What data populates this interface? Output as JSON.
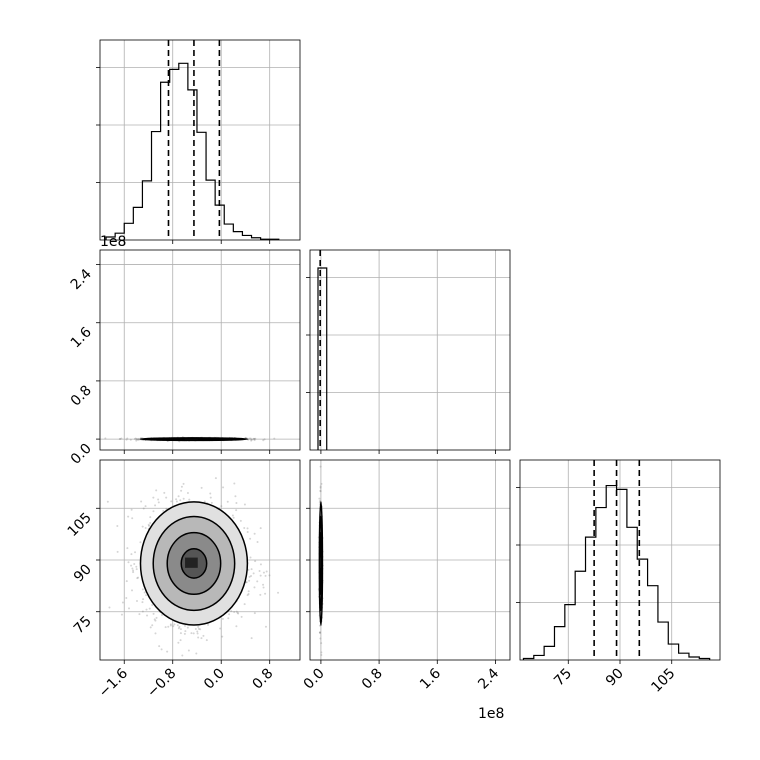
{
  "chart_data": {
    "type": "corner",
    "offset_labels": {
      "y_param2": "1e8",
      "x_param2": "1e8"
    },
    "panels": [
      {
        "id": "hist_p1",
        "type": "histogram",
        "x_range": [
          -2.0,
          1.3
        ],
        "x_ticks": [
          -1.6,
          -0.8,
          0.0,
          0.8
        ],
        "bin_edges": [
          -1.9,
          -1.75,
          -1.6,
          -1.45,
          -1.3,
          -1.15,
          -1.0,
          -0.85,
          -0.7,
          -0.55,
          -0.4,
          -0.25,
          -0.1,
          0.05,
          0.2,
          0.35,
          0.5,
          0.65,
          0.8,
          0.95
        ],
        "counts": [
          4,
          9,
          22,
          43,
          78,
          143,
          208,
          225,
          233,
          198,
          142,
          79,
          46,
          21,
          11,
          6,
          3,
          1,
          1
        ],
        "y_max": 240,
        "quantiles": [
          -0.87,
          -0.45,
          -0.03
        ]
      },
      {
        "id": "hist_p2",
        "type": "histogram",
        "x_range": [
          -0.15,
          2.6
        ],
        "x_ticks": [
          0.0,
          0.8,
          1.6,
          2.4
        ],
        "bin_edges": [
          -0.04,
          0.08
        ],
        "counts": [
          240
        ],
        "y_max": 240,
        "quantiles": [
          -0.01
        ]
      },
      {
        "id": "hist_p3",
        "type": "histogram",
        "x_range": [
          61,
          119
        ],
        "x_ticks": [
          75,
          90,
          105
        ],
        "bin_edges": [
          62,
          65,
          68,
          71,
          74,
          77,
          80,
          83,
          86,
          89,
          92,
          95,
          98,
          101,
          104,
          107,
          110,
          113,
          116
        ],
        "counts": [
          2,
          6,
          18,
          44,
          73,
          117,
          162,
          201,
          230,
          225,
          175,
          133,
          98,
          50,
          21,
          9,
          4,
          2
        ],
        "y_max": 240,
        "quantiles": [
          82.5,
          89.0,
          95.6
        ]
      },
      {
        "id": "scatter_p1_p2",
        "type": "scatter_contour",
        "x_range": [
          -2.0,
          1.3
        ],
        "y_range": [
          -0.15,
          2.6
        ],
        "x_ticks": [
          -1.6,
          -0.8,
          0.0,
          0.8
        ],
        "y_ticks": [
          0.0,
          0.8,
          1.6,
          2.4
        ],
        "center": [
          -0.45,
          0.0
        ]
      },
      {
        "id": "scatter_p1_p3",
        "type": "scatter_contour",
        "x_range": [
          -2.0,
          1.3
        ],
        "y_range": [
          61,
          119
        ],
        "x_ticks": [
          -1.6,
          -0.8,
          0.0,
          0.8
        ],
        "y_ticks": [
          75,
          90,
          105
        ],
        "center": [
          -0.45,
          89.0
        ]
      },
      {
        "id": "scatter_p2_p3",
        "type": "scatter_contour",
        "x_range": [
          -0.15,
          2.6
        ],
        "y_range": [
          61,
          119
        ],
        "x_ticks": [
          0.0,
          0.8,
          1.6,
          2.4
        ],
        "y_ticks": [
          75,
          90,
          105
        ],
        "center": [
          0.0,
          89.0
        ]
      }
    ]
  }
}
